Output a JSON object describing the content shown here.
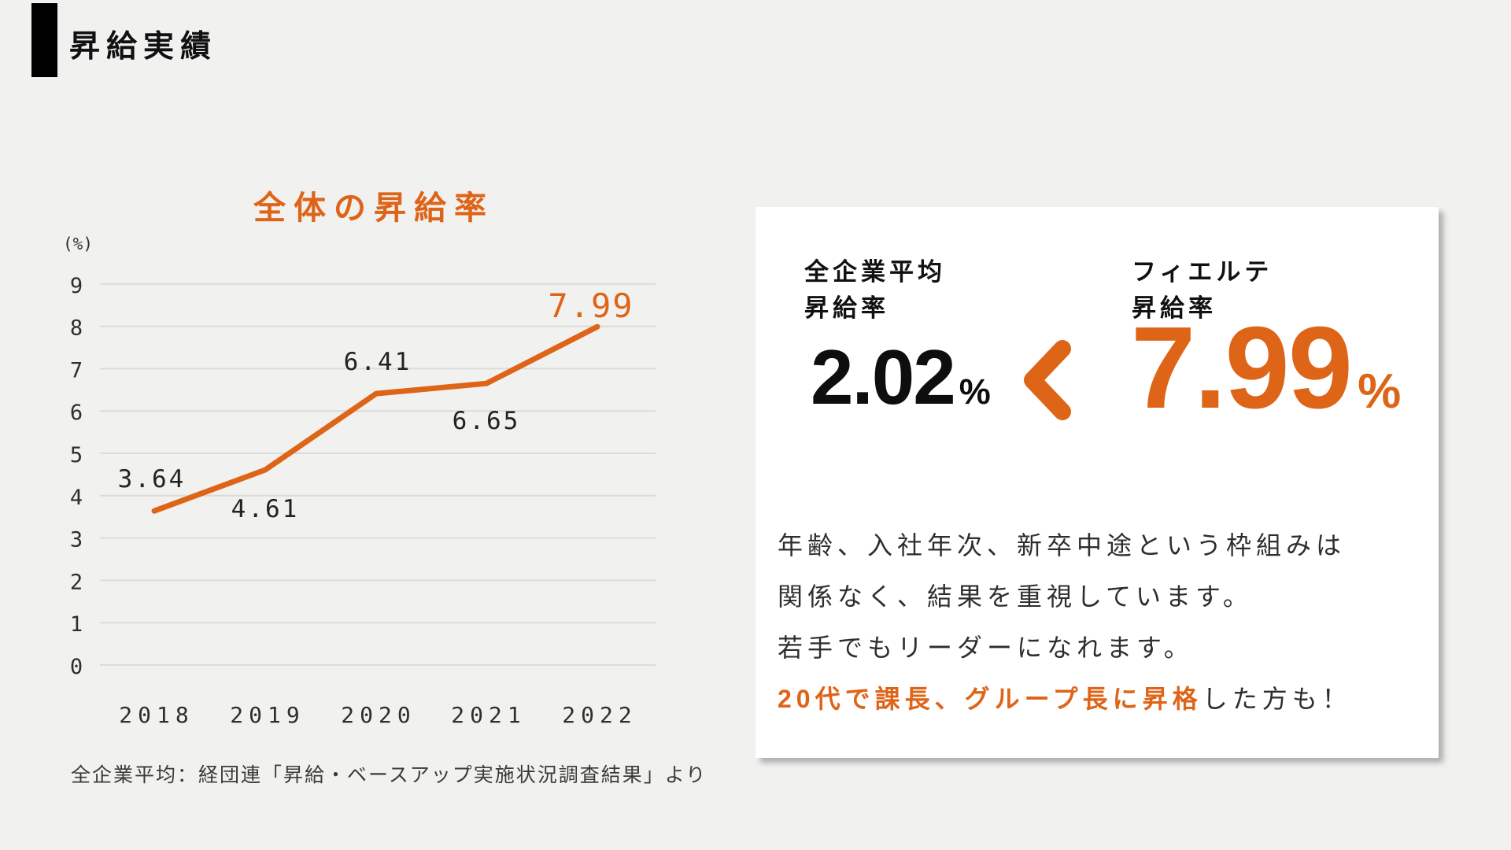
{
  "slide": {
    "header": {
      "title": "昇給実績"
    },
    "colors": {
      "background": "#F1F1EF",
      "accent": "#DE6418",
      "grid": "#DBDBD8",
      "card_bg": "#FFFFFF",
      "text": "#1C1C1C"
    }
  },
  "chart_data": {
    "type": "line",
    "title": "全体の昇給率",
    "unit_label": "(%)",
    "categories": [
      "2018",
      "2019",
      "2020",
      "2021",
      "2022"
    ],
    "values": [
      3.64,
      4.61,
      6.41,
      6.65,
      7.99
    ],
    "value_labels": [
      "3.64",
      "4.61",
      "6.41",
      "6.65",
      "7.99"
    ],
    "xlabel": "",
    "ylabel": "(%)",
    "ylim": [
      0,
      9
    ],
    "yticks": [
      9,
      8,
      7,
      6,
      5,
      4,
      3,
      2,
      1,
      0
    ],
    "grid": true,
    "legend": false,
    "line_color": "#DE6418",
    "highlight_last_label": true
  },
  "source_note": "全企業平均：経団連「昇給・ベースアップ実施状況調査結果」より",
  "card": {
    "left_metric": {
      "label_lines": [
        "全企業平均",
        "昇給率"
      ],
      "value": "2.02",
      "unit": "%"
    },
    "comparator": "<",
    "right_metric": {
      "label_lines": [
        "フィエルテ",
        "昇給率"
      ],
      "value": "7.99",
      "unit": "%"
    },
    "body_lines": [
      "年齢、入社年次、新卒中途という枠組みは",
      "関係なく、結果を重視しています。",
      "若手でもリーダーになれます。"
    ],
    "final_line": {
      "highlight": "20代で課長、グループ長に昇格",
      "rest": "した方も！"
    }
  }
}
